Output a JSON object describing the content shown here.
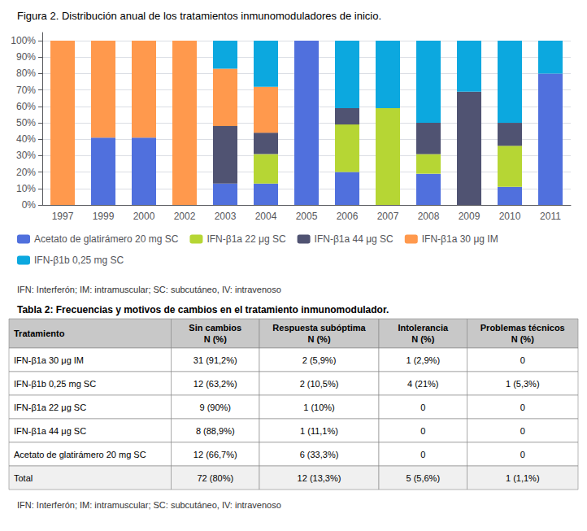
{
  "chart_data": [
    {
      "type": "bar",
      "title": "Figura 2. Distribución anual de los tratamientos inmunomoduladores de inicio.",
      "categories": [
        "1997",
        "1999",
        "2000",
        "2002",
        "2003",
        "2004",
        "2005",
        "2006",
        "2007",
        "2008",
        "2009",
        "2010",
        "2011"
      ],
      "series": [
        {
          "name": "Acetato de glatirámero 20 mg SC",
          "values": [
            0,
            41,
            41,
            0,
            13,
            13,
            100,
            20,
            0,
            19,
            0,
            11,
            80
          ]
        },
        {
          "name": "IFN-β1a 22 μg SC",
          "values": [
            0,
            0,
            0,
            0,
            0,
            18,
            0,
            29,
            59,
            12,
            0,
            25,
            0
          ]
        },
        {
          "name": "IFN-β1a 44 μg SC",
          "values": [
            0,
            0,
            0,
            0,
            35,
            13,
            0,
            10,
            0,
            19,
            69,
            14,
            0
          ]
        },
        {
          "name": "IFN-β1a 30 μg IM",
          "values": [
            100,
            59,
            59,
            100,
            35,
            28,
            0,
            0,
            0,
            0,
            0,
            0,
            0
          ]
        },
        {
          "name": "IFN-β1b 0,25 mg SC",
          "values": [
            0,
            0,
            0,
            0,
            17,
            28,
            0,
            41,
            41,
            50,
            31,
            50,
            20
          ]
        }
      ],
      "stacked": true,
      "ylim": [
        0,
        105
      ],
      "yticks": [
        {
          "value": 0,
          "label": "0%"
        },
        {
          "value": 10,
          "label": "10%"
        },
        {
          "value": 20,
          "label": "20%"
        },
        {
          "value": 30,
          "label": "30%"
        },
        {
          "value": 40,
          "label": "40%"
        },
        {
          "value": 50,
          "label": "50%"
        },
        {
          "value": 60,
          "label": "60%"
        },
        {
          "value": 70,
          "label": "70%"
        },
        {
          "value": 80,
          "label": "80%"
        },
        {
          "value": 90,
          "label": "90%"
        },
        {
          "value": 100,
          "label": "100%"
        }
      ],
      "grid": true,
      "legend": "lower left",
      "annotations": [
        "IFN: Interferón; IM: intramuscular; SC: subcutáneo, IV: intravenoso"
      ]
    },
    {
      "type": "table",
      "title": "Tabla 2: Frecuencias y motivos de cambios en el tratamiento inmunomodulador.",
      "columns": [
        "Tratamiento",
        "Sin cambios\nN (%)",
        "Respuesta subóptima\nN (%)",
        "Intolerancia\nN (%)",
        "Problemas técnicos\nN (%)"
      ],
      "rows": [
        [
          "IFN-β1a 30 μg IM",
          "31 (91,2%)",
          "2 (5,9%)",
          "1 (2,9%)",
          "0"
        ],
        [
          "IFN-β1b 0,25 mg SC",
          "12 (63,2%)",
          "2 (10,5%)",
          "4 (21%)",
          "1 (5,3%)"
        ],
        [
          "IFN-β1a 22 μg SC",
          "9 (90%)",
          "1 (10%)",
          "0",
          "0"
        ],
        [
          "IFN-β1a 44 μg SC",
          "8 (88,9%)",
          "1 (11,1%)",
          "0",
          "0"
        ],
        [
          "Acetato de glatirámero 20 mg SC",
          "12 (66,7%)",
          "6 (33,3%)",
          "0",
          "0"
        ],
        [
          "Total",
          "72 (80%)",
          "12 (13,3%)",
          "5 (5,6%)",
          "1 (1,1%)"
        ]
      ],
      "annotations": [
        "IFN: Interferón; IM: intramuscular; SC: subcutáneo, IV: intravenoso"
      ]
    }
  ]
}
